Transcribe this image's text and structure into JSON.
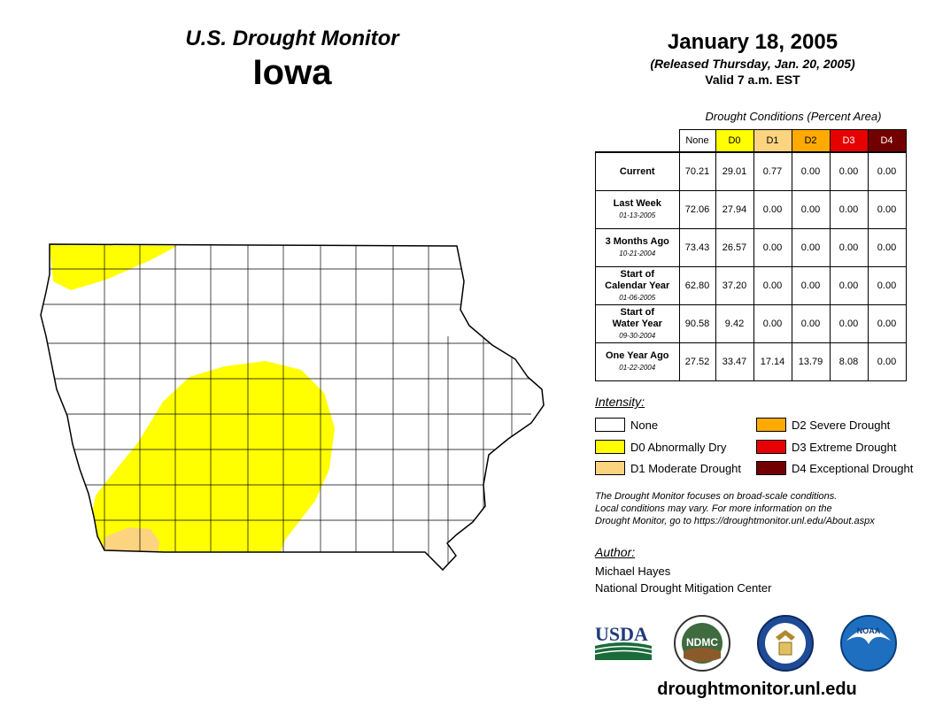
{
  "header": {
    "product_title": "U.S. Drought Monitor",
    "state": "Iowa",
    "date": "January 18, 2005",
    "released": "(Released Thursday, Jan. 20, 2005)",
    "valid": "Valid 7 a.m. EST"
  },
  "table": {
    "caption": "Drought Conditions (Percent Area)",
    "columns": [
      "None",
      "D0",
      "D1",
      "D2",
      "D3",
      "D4"
    ],
    "rows": [
      {
        "label": "Current",
        "date": "",
        "values": [
          "70.21",
          "29.01",
          "0.77",
          "0.00",
          "0.00",
          "0.00"
        ]
      },
      {
        "label": "Last Week",
        "date": "01-13-2005",
        "values": [
          "72.06",
          "27.94",
          "0.00",
          "0.00",
          "0.00",
          "0.00"
        ]
      },
      {
        "label": "3 Months Ago",
        "date": "10-21-2004",
        "values": [
          "73.43",
          "26.57",
          "0.00",
          "0.00",
          "0.00",
          "0.00"
        ]
      },
      {
        "label": "Start of Calendar Year",
        "date": "01-06-2005",
        "values": [
          "62.80",
          "37.20",
          "0.00",
          "0.00",
          "0.00",
          "0.00"
        ]
      },
      {
        "label": "Start of Water Year",
        "date": "09-30-2004",
        "values": [
          "90.58",
          "9.42",
          "0.00",
          "0.00",
          "0.00",
          "0.00"
        ]
      },
      {
        "label": "One Year Ago",
        "date": "01-22-2004",
        "values": [
          "27.52",
          "33.47",
          "17.14",
          "13.79",
          "8.08",
          "0.00"
        ]
      }
    ]
  },
  "legend": {
    "title": "Intensity:",
    "items": [
      {
        "label": "None",
        "color": "#ffffff"
      },
      {
        "label": "D0 Abnormally Dry",
        "color": "#ffff00"
      },
      {
        "label": "D1 Moderate Drought",
        "color": "#fcd37f"
      },
      {
        "label": "D2 Severe Drought",
        "color": "#ffaa00"
      },
      {
        "label": "D3 Extreme Drought",
        "color": "#e60000"
      },
      {
        "label": "D4 Exceptional Drought",
        "color": "#730000"
      }
    ]
  },
  "note": {
    "line1": "The Drought Monitor focuses on broad-scale conditions.",
    "line2": "Local conditions may vary. For more information on the",
    "line3": "Drought Monitor, go to https://droughtmonitor.unl.edu/About.aspx"
  },
  "author": {
    "title": "Author:",
    "name": "Michael Hayes",
    "org": "National Drought Mitigation Center"
  },
  "logos": {
    "usda": "USDA",
    "ndmc": "NDMC",
    "noaa": "NOAA"
  },
  "website": "droughtmonitor.unl.edu",
  "colors": {
    "d0": "#ffff00",
    "d1": "#fcd37f",
    "d2": "#ffaa00",
    "d3": "#e60000",
    "d4": "#730000"
  }
}
